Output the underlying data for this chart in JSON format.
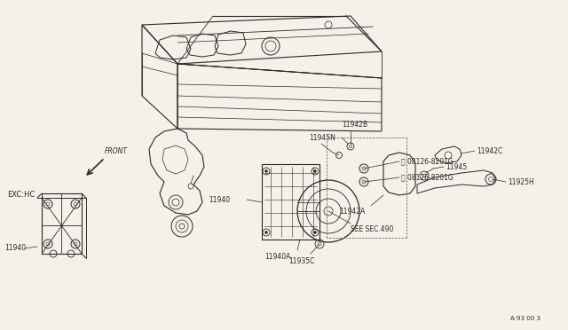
{
  "bg_color": "#f5f0e8",
  "line_color": "#2a2a2a",
  "fig_width": 6.4,
  "fig_height": 3.72,
  "dpi": 100,
  "labels": {
    "front_text": "FRONT",
    "exc_hc": "EXC:HC",
    "see_sec": "SEE SEC.490",
    "ref_code": "A·93 00 3",
    "part_11942B": "11942B",
    "part_11945N": "11945N",
    "part_08126_1": "Ⓑ 08126-8201G",
    "part_08126_2": "Ⓑ 08126-8201G",
    "part_11945": "11945",
    "part_11942C": "11942C",
    "part_11925H": "11925H",
    "part_11942A": "11942A",
    "part_11940_left": "11940",
    "part_11940_mid": "11940",
    "part_11940A": "11940A",
    "part_11935C": "11935C"
  },
  "font_size_labels": 5.5,
  "font_size_ref": 5.0,
  "font_size_front": 5.5,
  "font_size_exChc": 6.0
}
